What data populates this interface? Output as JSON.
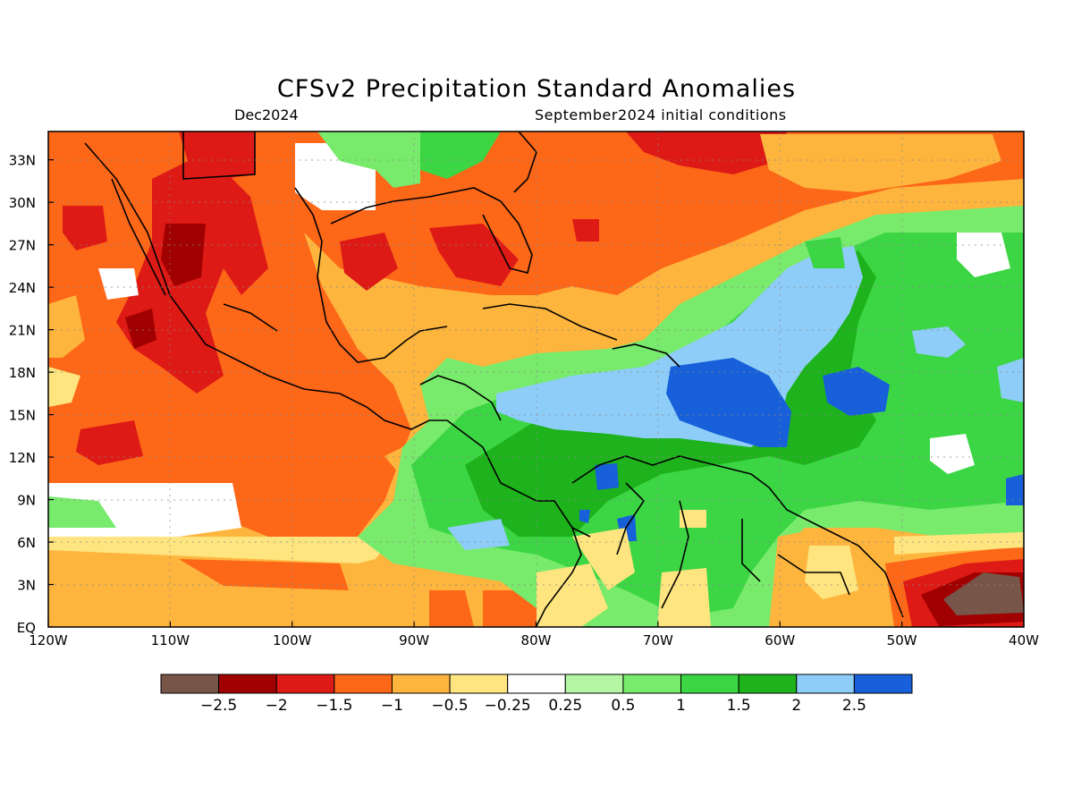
{
  "title": "CFSv2 Precipitation Standard Anomalies",
  "subtitle_left": "Dec2024",
  "subtitle_right": "September2024 initial conditions",
  "lon_ticks": [
    "120W",
    "110W",
    "100W",
    "90W",
    "80W",
    "70W",
    "60W",
    "50W",
    "40W"
  ],
  "lat_ticks": [
    "EQ",
    "3N",
    "6N",
    "9N",
    "12N",
    "15N",
    "18N",
    "21N",
    "24N",
    "27N",
    "30N",
    "33N"
  ],
  "colorbar": {
    "colors": [
      "#775548",
      "#a10000",
      "#dd1a16",
      "#fd6718",
      "#fdb53e",
      "#fee580",
      "#ffffff",
      "#b5f6a4",
      "#78ea6c",
      "#3cd644",
      "#1eb31c",
      "#8ecdf8",
      "#1760d9"
    ],
    "labels": [
      "−2.5",
      "−2",
      "−1.5",
      "−1",
      "−0.5",
      "−0.25",
      "0.25",
      "0.5",
      "1",
      "1.5",
      "2",
      "2.5"
    ]
  }
}
